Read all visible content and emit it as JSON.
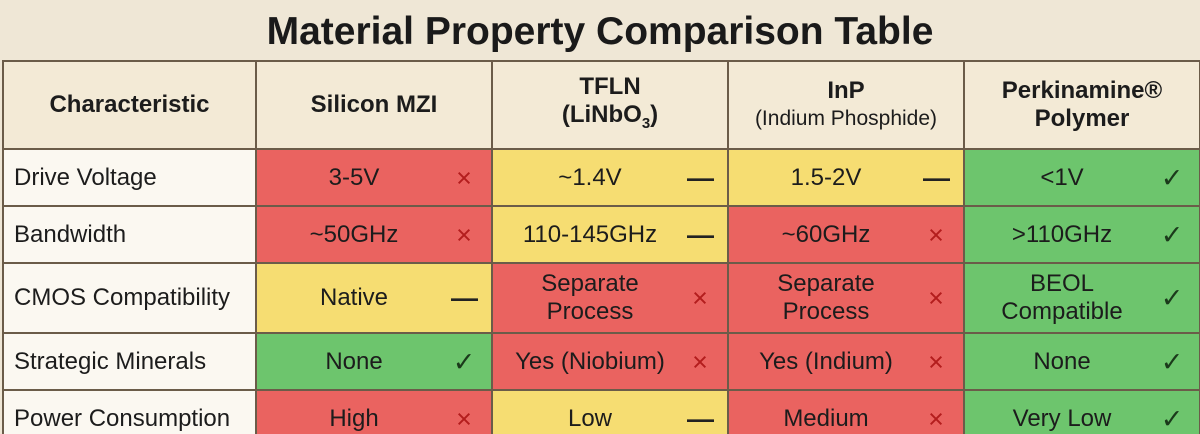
{
  "title": "Material Property Comparison Table",
  "headers": {
    "characteristic": "Characteristic",
    "silicon": "Silicon MZI",
    "tfln_line1": "TFLN",
    "tfln_line2_pre": "(LiNbO",
    "tfln_line2_sub": "3",
    "tfln_line2_post": ")",
    "inp_line1": "InP",
    "inp_line2": "(Indium Phosphide)",
    "perk_line1": "Perkinamine®",
    "perk_line2": "Polymer"
  },
  "colors": {
    "red": "#ea6360",
    "yellow": "#f6dd72",
    "green": "#6dc56d",
    "cross": "#b31d1d",
    "border": "#6b5c49"
  },
  "rows": [
    {
      "label": "Drive Voltage",
      "cells": [
        {
          "value": "3-5V",
          "status": "red",
          "mark": "×",
          "mark_icon": "cross-icon"
        },
        {
          "value": "~1.4V",
          "status": "yellow",
          "mark": "—",
          "mark_icon": "dash-icon"
        },
        {
          "value": "1.5-2V",
          "status": "yellow",
          "mark": "—",
          "mark_icon": "dash-icon"
        },
        {
          "value": "<1V",
          "status": "green",
          "mark": "✓",
          "mark_icon": "check-icon"
        }
      ]
    },
    {
      "label": "Bandwidth",
      "cells": [
        {
          "value": "~50GHz",
          "status": "red",
          "mark": "×",
          "mark_icon": "cross-icon"
        },
        {
          "value": "110-145GHz",
          "status": "yellow",
          "mark": "—",
          "mark_icon": "dash-icon"
        },
        {
          "value": "~60GHz",
          "status": "red",
          "mark": "×",
          "mark_icon": "cross-icon"
        },
        {
          "value": ">110GHz",
          "status": "green",
          "mark": "✓",
          "mark_icon": "check-icon"
        }
      ]
    },
    {
      "label": "CMOS Compatibility",
      "cells": [
        {
          "value": "Native",
          "status": "yellow",
          "mark": "—",
          "mark_icon": "dash-icon"
        },
        {
          "value_line1": "Separate",
          "value_line2": "Process",
          "status": "red",
          "mark": "×",
          "mark_icon": "cross-icon"
        },
        {
          "value_line1": "Separate",
          "value_line2": "Process",
          "status": "red",
          "mark": "×",
          "mark_icon": "cross-icon"
        },
        {
          "value_line1": "BEOL",
          "value_line2": "Compatible",
          "status": "green",
          "mark": "✓",
          "mark_icon": "check-icon"
        }
      ]
    },
    {
      "label": "Strategic Minerals",
      "cells": [
        {
          "value": "None",
          "status": "green",
          "mark": "✓",
          "mark_icon": "check-icon"
        },
        {
          "value": "Yes (Niobium)",
          "status": "red",
          "mark": "×",
          "mark_icon": "cross-icon"
        },
        {
          "value": "Yes (Indium)",
          "status": "red",
          "mark": "×",
          "mark_icon": "cross-icon"
        },
        {
          "value": "None",
          "status": "green",
          "mark": "✓",
          "mark_icon": "check-icon"
        }
      ]
    },
    {
      "label": "Power Consumption",
      "cells": [
        {
          "value": "High",
          "status": "red",
          "mark": "×",
          "mark_icon": "cross-icon"
        },
        {
          "value": "Low",
          "status": "yellow",
          "mark": "—",
          "mark_icon": "dash-icon"
        },
        {
          "value": "Medium",
          "status": "red",
          "mark": "×",
          "mark_icon": "cross-icon"
        },
        {
          "value": "Very Low",
          "status": "green",
          "mark": "✓",
          "mark_icon": "check-icon"
        }
      ]
    }
  ]
}
